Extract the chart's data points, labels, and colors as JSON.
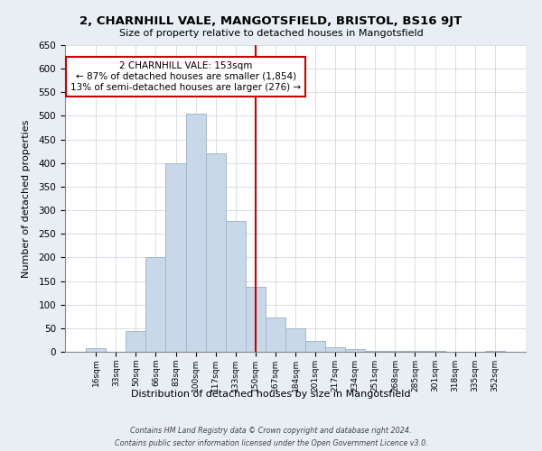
{
  "title": "2, CHARNHILL VALE, MANGOTSFIELD, BRISTOL, BS16 9JT",
  "subtitle": "Size of property relative to detached houses in Mangotsfield",
  "xlabel": "Distribution of detached houses by size in Mangotsfield",
  "ylabel": "Number of detached properties",
  "bar_color": "#c8d8e8",
  "bar_edge_color": "#a0b8cc",
  "bin_labels": [
    "16sqm",
    "33sqm",
    "50sqm",
    "66sqm",
    "83sqm",
    "100sqm",
    "117sqm",
    "133sqm",
    "150sqm",
    "167sqm",
    "184sqm",
    "201sqm",
    "217sqm",
    "234sqm",
    "251sqm",
    "268sqm",
    "285sqm",
    "301sqm",
    "318sqm",
    "335sqm",
    "352sqm"
  ],
  "bar_heights": [
    8,
    0,
    44,
    200,
    400,
    505,
    420,
    278,
    138,
    73,
    50,
    22,
    10,
    5,
    2,
    1,
    1,
    1,
    0,
    0,
    2
  ],
  "vline_x_idx": 8,
  "vline_color": "#cc0000",
  "annotation_text_line1": "2 CHARNHILL VALE: 153sqm",
  "annotation_text_line2": "← 87% of detached houses are smaller (1,854)",
  "annotation_text_line3": "13% of semi-detached houses are larger (276) →",
  "annotation_box_color": "#ffffff",
  "annotation_box_edge": "#cc0000",
  "ylim": [
    0,
    650
  ],
  "yticks": [
    0,
    50,
    100,
    150,
    200,
    250,
    300,
    350,
    400,
    450,
    500,
    550,
    600,
    650
  ],
  "footnote1": "Contains HM Land Registry data © Crown copyright and database right 2024.",
  "footnote2": "Contains public sector information licensed under the Open Government Licence v3.0.",
  "fig_bg_color": "#e8eef4",
  "plot_bg_color": "#ffffff",
  "grid_color": "#d0d8e0"
}
